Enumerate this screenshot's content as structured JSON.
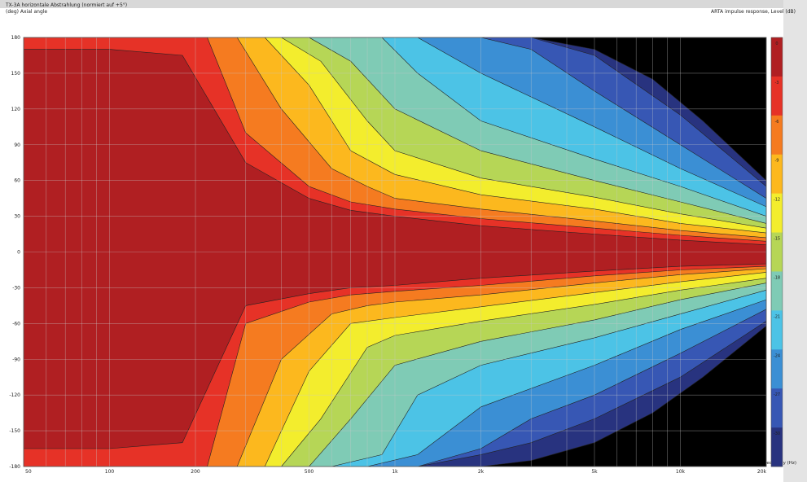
{
  "chart_data": {
    "type": "heatmap",
    "title": "TX-3A horizontale Abstrahlung (normiert auf +5°)",
    "ylabel": "(deg) Axial angle",
    "xlabel": "Frequency (Hz)",
    "zlabel": "ARTA impulse response, Level (dB)",
    "xscale": "log",
    "xlim": [
      50,
      20000
    ],
    "ylim": [
      -180,
      180
    ],
    "x_ticks": [
      {
        "value": 50,
        "label": "50"
      },
      {
        "value": 100,
        "label": "100"
      },
      {
        "value": 200,
        "label": "200"
      },
      {
        "value": 500,
        "label": "500"
      },
      {
        "value": 1000,
        "label": "1k"
      },
      {
        "value": 2000,
        "label": "2k"
      },
      {
        "value": 5000,
        "label": "5k"
      },
      {
        "value": 10000,
        "label": "10k"
      },
      {
        "value": 20000,
        "label": "20k"
      }
    ],
    "y_ticks": [
      180,
      150,
      120,
      90,
      60,
      30,
      0,
      -30,
      -60,
      -90,
      -120,
      -150,
      -180
    ],
    "grid": true,
    "colorbar": [
      {
        "label": "0",
        "color": "#b01f22"
      },
      {
        "label": "-3",
        "color": "#e63227"
      },
      {
        "label": "-6",
        "color": "#f57b20"
      },
      {
        "label": "-9",
        "color": "#fcb81e"
      },
      {
        "label": "-12",
        "color": "#f3ed2d"
      },
      {
        "label": "-15",
        "color": "#b6d656"
      },
      {
        "label": "-18",
        "color": "#7fcbb5"
      },
      {
        "label": "-21",
        "color": "#4cc3e6"
      },
      {
        "label": "-24",
        "color": "#3b8fd4"
      },
      {
        "label": "-27",
        "color": "#3757b4"
      },
      {
        "label": "-30",
        "color": "#28337f"
      }
    ],
    "below_range_color": "#000000",
    "contour_bands": {
      "comment_free": true,
      "upper": [
        {
          "level": 0,
          "freq": [
            50,
            100,
            180,
            300,
            500,
            700,
            1000,
            2000,
            5000,
            10000,
            20000
          ],
          "angle": [
            170,
            170,
            165,
            75,
            45,
            35,
            30,
            22,
            15,
            10,
            6
          ]
        },
        {
          "level": -3,
          "freq": [
            50,
            180,
            220,
            300,
            500,
            700,
            1000,
            2000,
            5000,
            10000,
            20000
          ],
          "angle": [
            180,
            180,
            180,
            100,
            55,
            42,
            36,
            28,
            20,
            14,
            9
          ]
        },
        {
          "level": -6,
          "freq": [
            50,
            220,
            280,
            400,
            600,
            800,
            1000,
            2000,
            5000,
            10000,
            20000
          ],
          "angle": [
            180,
            180,
            180,
            120,
            70,
            55,
            45,
            36,
            26,
            18,
            12
          ]
        },
        {
          "level": -9,
          "freq": [
            50,
            280,
            350,
            500,
            700,
            1000,
            2000,
            5000,
            10000,
            20000
          ],
          "angle": [
            180,
            180,
            180,
            140,
            85,
            65,
            48,
            36,
            24,
            16
          ]
        },
        {
          "level": -12,
          "freq": [
            50,
            320,
            400,
            550,
            800,
            1000,
            2000,
            5000,
            10000,
            20000
          ],
          "angle": [
            180,
            180,
            180,
            160,
            110,
            85,
            62,
            46,
            32,
            20
          ]
        },
        {
          "level": -15,
          "freq": [
            50,
            380,
            500,
            700,
            1000,
            2000,
            5000,
            10000,
            20000
          ],
          "angle": [
            180,
            180,
            180,
            160,
            120,
            85,
            60,
            42,
            24
          ]
        },
        {
          "level": -18,
          "freq": [
            50,
            450,
            600,
            900,
            1200,
            2000,
            5000,
            10000,
            20000
          ],
          "angle": [
            180,
            180,
            180,
            180,
            150,
            110,
            78,
            55,
            30
          ]
        },
        {
          "level": -21,
          "freq": [
            50,
            550,
            800,
            1200,
            2000,
            5000,
            10000,
            20000
          ],
          "angle": [
            180,
            180,
            180,
            180,
            150,
            105,
            70,
            38
          ]
        },
        {
          "level": -24,
          "freq": [
            50,
            700,
            1200,
            2000,
            3000,
            5000,
            10000,
            20000
          ],
          "angle": [
            180,
            180,
            180,
            180,
            170,
            135,
            90,
            45
          ]
        },
        {
          "level": -27,
          "freq": [
            50,
            1200,
            2000,
            3000,
            5000,
            10000,
            20000
          ],
          "angle": [
            180,
            180,
            180,
            180,
            165,
            115,
            55
          ]
        },
        {
          "level": -30,
          "freq": [
            50,
            2000,
            3000,
            5000,
            8000,
            12000,
            20000
          ],
          "angle": [
            180,
            180,
            180,
            170,
            145,
            110,
            60
          ]
        }
      ],
      "lower": [
        {
          "level": 0,
          "freq": [
            50,
            100,
            180,
            300,
            500,
            700,
            1000,
            2000,
            5000,
            10000,
            20000
          ],
          "angle": [
            -165,
            -165,
            -160,
            -45,
            -35,
            -30,
            -28,
            -22,
            -16,
            -12,
            -10
          ]
        },
        {
          "level": -3,
          "freq": [
            50,
            180,
            220,
            300,
            500,
            700,
            1000,
            2000,
            5000,
            10000,
            20000
          ],
          "angle": [
            -180,
            -180,
            -180,
            -60,
            -42,
            -36,
            -33,
            -28,
            -20,
            -15,
            -12
          ]
        },
        {
          "level": -6,
          "freq": [
            50,
            220,
            280,
            400,
            600,
            800,
            1000,
            2000,
            5000,
            10000,
            20000
          ],
          "angle": [
            -180,
            -180,
            -180,
            -90,
            -52,
            -45,
            -42,
            -36,
            -26,
            -19,
            -14
          ]
        },
        {
          "level": -9,
          "freq": [
            50,
            280,
            350,
            500,
            700,
            1000,
            2000,
            5000,
            10000,
            20000
          ],
          "angle": [
            -180,
            -180,
            -180,
            -100,
            -60,
            -55,
            -46,
            -34,
            -25,
            -17
          ]
        },
        {
          "level": -12,
          "freq": [
            50,
            320,
            400,
            550,
            800,
            1000,
            2000,
            5000,
            10000,
            20000
          ],
          "angle": [
            -180,
            -180,
            -180,
            -140,
            -80,
            -70,
            -58,
            -44,
            -32,
            -22
          ]
        },
        {
          "level": -15,
          "freq": [
            50,
            380,
            500,
            700,
            1000,
            2000,
            5000,
            10000,
            20000
          ],
          "angle": [
            -180,
            -180,
            -180,
            -140,
            -95,
            -75,
            -57,
            -40,
            -26
          ]
        },
        {
          "level": -18,
          "freq": [
            50,
            450,
            600,
            900,
            1200,
            2000,
            5000,
            10000,
            20000
          ],
          "angle": [
            -180,
            -180,
            -180,
            -170,
            -120,
            -95,
            -72,
            -52,
            -32
          ]
        },
        {
          "level": -21,
          "freq": [
            50,
            550,
            800,
            1200,
            2000,
            5000,
            10000,
            20000
          ],
          "angle": [
            -180,
            -180,
            -180,
            -170,
            -130,
            -95,
            -65,
            -40
          ]
        },
        {
          "level": -24,
          "freq": [
            50,
            700,
            1200,
            2000,
            3000,
            5000,
            10000,
            20000
          ],
          "angle": [
            -180,
            -180,
            -180,
            -165,
            -140,
            -120,
            -85,
            -48
          ]
        },
        {
          "level": -27,
          "freq": [
            50,
            1200,
            2000,
            3000,
            5000,
            10000,
            20000
          ],
          "angle": [
            -180,
            -180,
            -170,
            -160,
            -140,
            -105,
            -58
          ]
        },
        {
          "level": -30,
          "freq": [
            50,
            2000,
            3000,
            5000,
            8000,
            12000,
            20000
          ],
          "angle": [
            -180,
            -180,
            -175,
            -160,
            -135,
            -105,
            -62
          ]
        }
      ]
    }
  }
}
